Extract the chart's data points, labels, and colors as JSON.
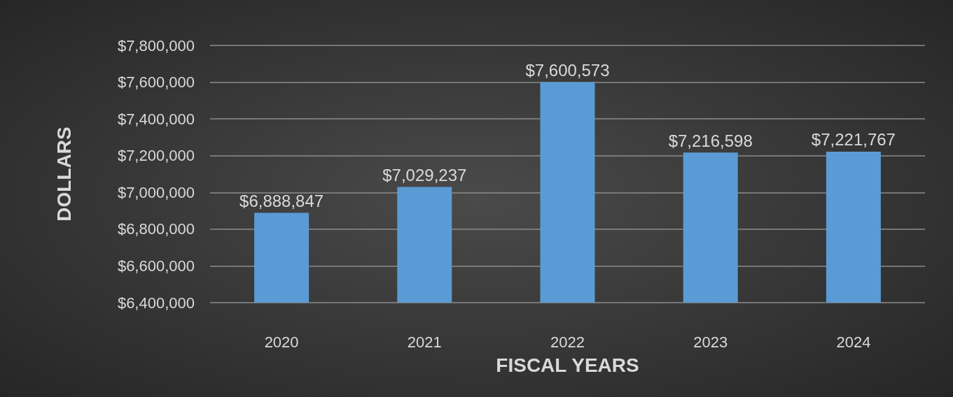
{
  "chart_data": {
    "type": "bar",
    "xlabel": "FISCAL YEARS",
    "ylabel": "DOLLARS",
    "categories": [
      "2020",
      "2021",
      "2022",
      "2023",
      "2024"
    ],
    "values": [
      6888847,
      7029237,
      7600573,
      7216598,
      7221767
    ],
    "value_labels": [
      "$6,888,847",
      "$7,029,237",
      "$7,600,573",
      "$7,216,598",
      "$7,221,767"
    ],
    "color": "#5b9bd5",
    "ylim": [
      6400000,
      7800000
    ],
    "yticks": [
      {
        "value": 6400000,
        "label": "$6,400,000"
      },
      {
        "value": 6600000,
        "label": "$6,600,000"
      },
      {
        "value": 6800000,
        "label": "$6,800,000"
      },
      {
        "value": 7000000,
        "label": "$7,000,000"
      },
      {
        "value": 7200000,
        "label": "$7,200,000"
      },
      {
        "value": 7400000,
        "label": "$7,400,000"
      },
      {
        "value": 7600000,
        "label": "$7,600,000"
      },
      {
        "value": 7800000,
        "label": "$7,800,000"
      }
    ],
    "grid": "y"
  }
}
